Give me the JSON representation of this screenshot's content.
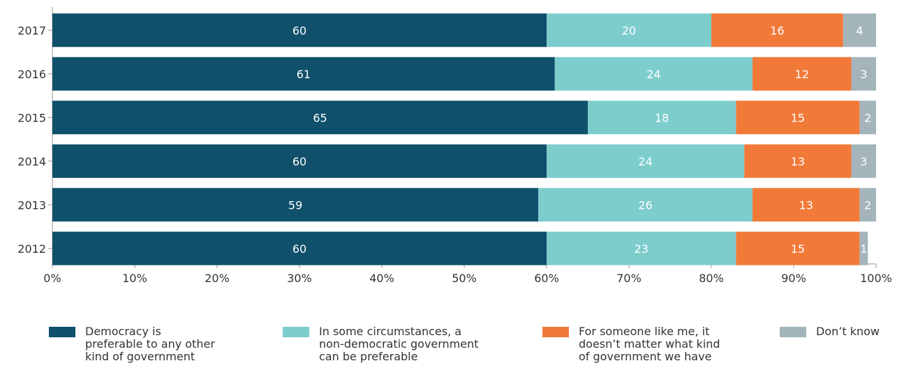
{
  "chart_data": {
    "type": "bar",
    "orientation": "horizontal",
    "stacked": true,
    "categories": [
      "2017",
      "2016",
      "2015",
      "2014",
      "2013",
      "2012"
    ],
    "series": [
      {
        "name": "Democracy is\npreferable to any other\nkind of government",
        "color": "#10506b",
        "values": [
          60,
          61,
          65,
          60,
          59,
          60
        ]
      },
      {
        "name": "In some circumstances, a\nnon-democratic government\ncan be preferable",
        "color": "#7ecdcd",
        "values": [
          20,
          24,
          18,
          24,
          26,
          23
        ]
      },
      {
        "name": "For someone like me, it\ndoesn’t matter what kind\nof government we have",
        "color": "#f27a39",
        "values": [
          16,
          12,
          15,
          13,
          13,
          15
        ]
      },
      {
        "name": "Don’t know",
        "color": "#a3b5bb",
        "values": [
          4,
          3,
          2,
          3,
          2,
          1
        ]
      }
    ],
    "xticks": [
      "0%",
      "10%",
      "20%",
      "30%",
      "40%",
      "50%",
      "60%",
      "70%",
      "80%",
      "90%",
      "100%"
    ],
    "xlim": [
      0,
      100
    ],
    "legend_position": "bottom",
    "data_labels": true
  }
}
